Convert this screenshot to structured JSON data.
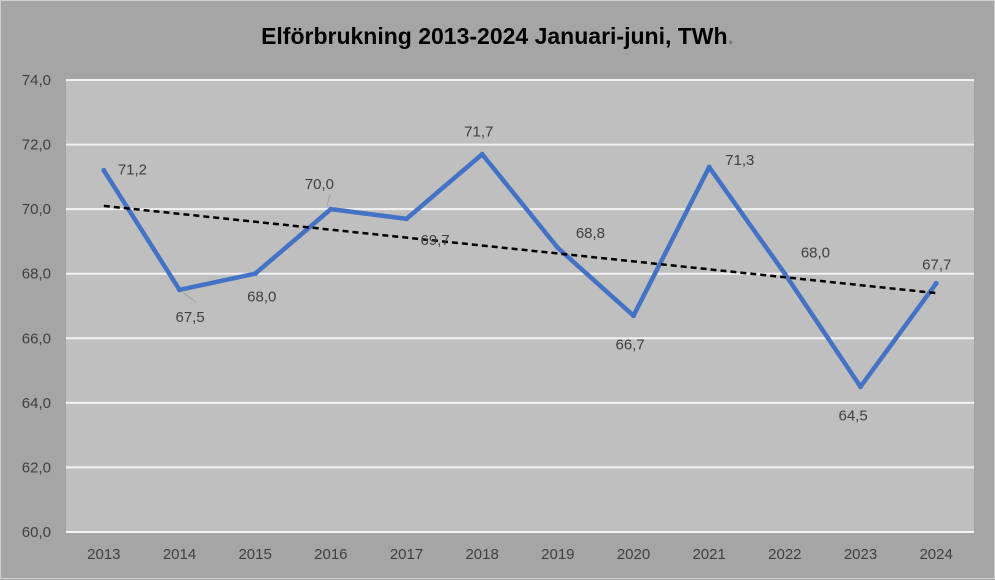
{
  "chart_data": {
    "type": "line",
    "title": "Elförbrukning 2013-2024 Januari-juni, TWh",
    "title_suffix": ".",
    "categories": [
      "2013",
      "2014",
      "2015",
      "2016",
      "2017",
      "2018",
      "2019",
      "2020",
      "2021",
      "2022",
      "2023",
      "2024"
    ],
    "series": [
      {
        "name": "Elförbrukning",
        "color": "#4472c4",
        "values": [
          71.2,
          67.5,
          68.0,
          70.0,
          69.7,
          71.7,
          68.8,
          66.7,
          71.3,
          68.0,
          64.5,
          67.7
        ],
        "labels": [
          "71,2",
          "67,5",
          "68,0",
          "70,0",
          "69,7",
          "71,7",
          "68,8",
          "66,7",
          "71,3",
          "68,0",
          "64,5",
          "67,7"
        ]
      }
    ],
    "trendline": {
      "type": "linear",
      "style": "dashed",
      "color": "#000000",
      "start": 70.1,
      "end": 67.4
    },
    "ylim": [
      60,
      74
    ],
    "yticks": [
      "60,0",
      "62,0",
      "64,0",
      "66,0",
      "68,0",
      "70,0",
      "72,0",
      "74,0"
    ],
    "ytick_values": [
      60,
      62,
      64,
      66,
      68,
      70,
      72,
      74
    ],
    "grid": true,
    "xlabel": "",
    "ylabel": ""
  }
}
